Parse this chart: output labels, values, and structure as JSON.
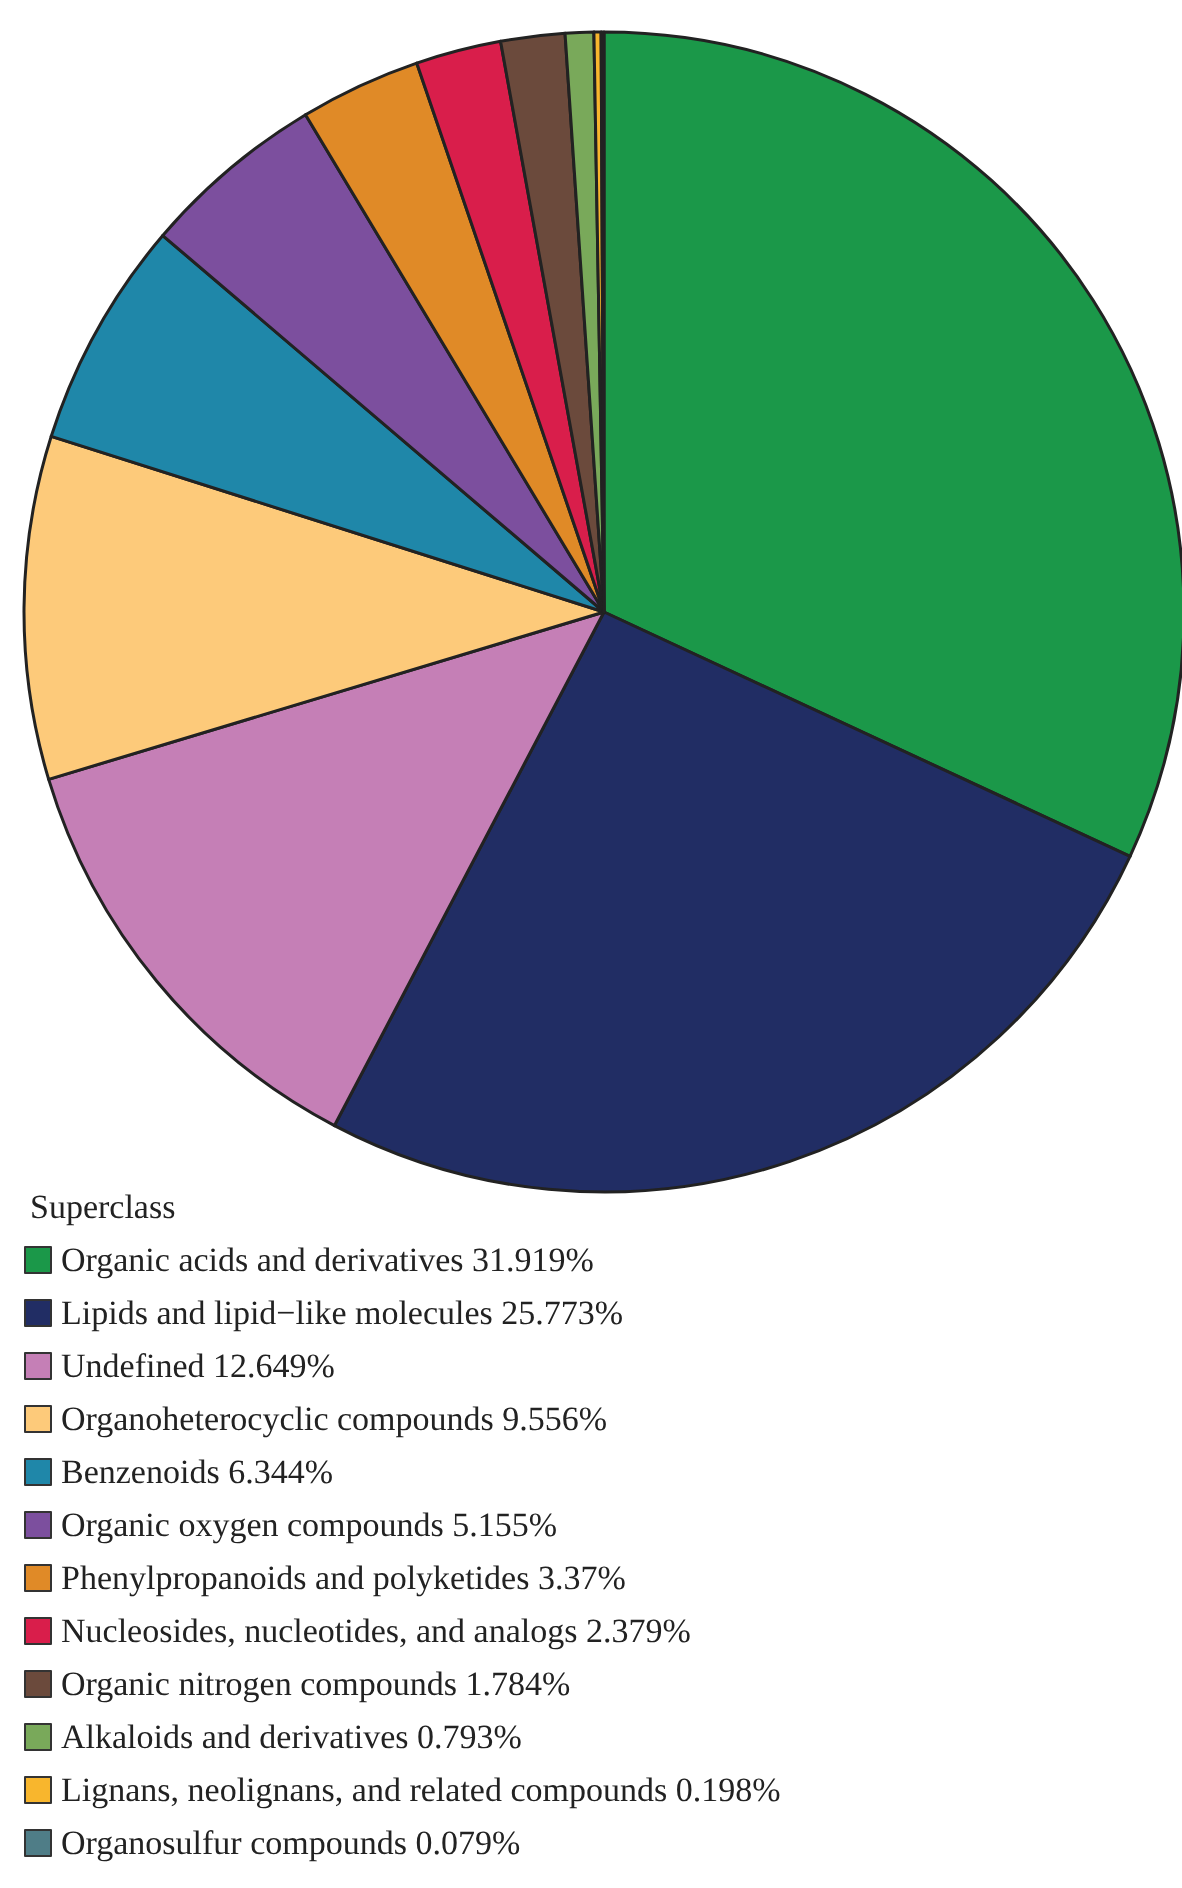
{
  "chart_data": {
    "type": "pie",
    "legend_title": "Superclass",
    "legend": "bottom left",
    "categories": [
      "Organic acids and derivatives 31.919%",
      "Lipids and lipid−like molecules 25.773%",
      "Undefined 12.649%",
      "Organoheterocyclic compounds 9.556%",
      "Benzenoids 6.344%",
      "Organic oxygen compounds 5.155%",
      "Phenylpropanoids and polyketides 3.37%",
      "Nucleosides, nucleotides, and analogs 2.379%",
      "Organic nitrogen compounds 1.784%",
      "Alkaloids and derivatives 0.793%",
      "Lignans, neolignans, and related compounds 0.198%",
      "Organosulfur compounds 0.079%"
    ],
    "values": [
      31.919,
      25.773,
      12.649,
      9.556,
      6.344,
      5.155,
      3.37,
      2.379,
      1.784,
      0.793,
      0.198,
      0.079
    ],
    "colors": [
      "#1b9849",
      "#212d64",
      "#c57fb6",
      "#fdca7a",
      "#1f87a9",
      "#7c4f9e",
      "#e08a27",
      "#d91e4b",
      "#6b4a3c",
      "#79a95a",
      "#f8b62d",
      "#4f7d87"
    ]
  }
}
